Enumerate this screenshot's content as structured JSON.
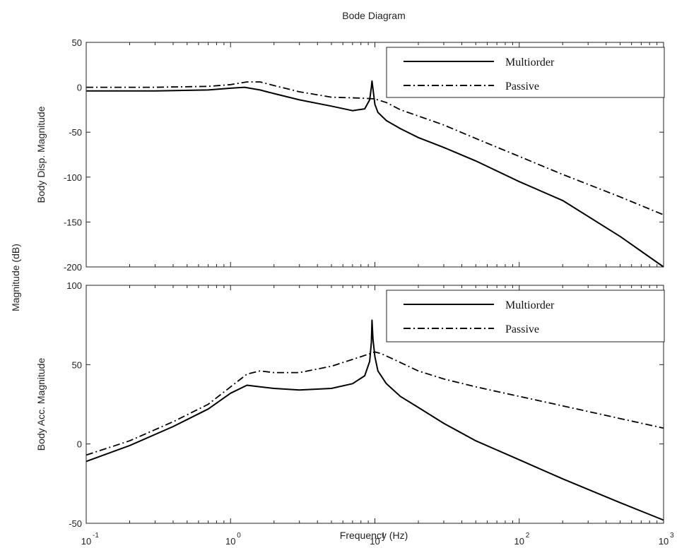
{
  "figure": {
    "title": "Bode Diagram",
    "shared_ylabel": "Magnitude (dB)",
    "xlabel": "Frequency  (Hz)"
  },
  "chart_data": [
    {
      "type": "line",
      "title": "",
      "xlabel": "Frequency  (Hz)",
      "ylabel": "Body Disp. Magnitude",
      "xscale": "log",
      "xlim": [
        0.1,
        1000
      ],
      "ylim": [
        -200,
        50
      ],
      "yticks": [
        -200,
        -150,
        -100,
        -50,
        0,
        50
      ],
      "xticks": [
        {
          "base": "10",
          "exp": "-1"
        },
        {
          "base": "10",
          "exp": "0"
        },
        {
          "base": "10",
          "exp": "1"
        },
        {
          "base": "10",
          "exp": "2"
        },
        {
          "base": "10",
          "exp": "3"
        }
      ],
      "grid": false,
      "legend_position": "top-right",
      "series": [
        {
          "name": "Multiorder",
          "style": "solid",
          "x": [
            0.1,
            0.3,
            0.7,
            1.0,
            1.25,
            1.6,
            2.0,
            3.0,
            5.0,
            7.0,
            8.5,
            9.2,
            9.45,
            9.55,
            9.7,
            10.0,
            10.5,
            12.0,
            15.0,
            20.0,
            30.0,
            50.0,
            100.0,
            200.0,
            500.0,
            1000.0
          ],
          "y": [
            -4,
            -4,
            -3,
            -1,
            0,
            -3,
            -7,
            -14,
            -21,
            -26,
            -24,
            -14,
            0,
            7,
            -2,
            -19,
            -28,
            -37,
            -46,
            -56,
            -67,
            -82,
            -105,
            -126,
            -166,
            -200
          ]
        },
        {
          "name": "Passive",
          "style": "dashdot",
          "x": [
            0.1,
            0.3,
            0.7,
            1.0,
            1.3,
            1.6,
            2.0,
            3.0,
            5.0,
            8.0,
            10.0,
            12.0,
            15.0,
            20.0,
            30.0,
            50.0,
            100.0,
            200.0,
            500.0,
            1000.0
          ],
          "y": [
            0,
            0,
            1,
            3,
            6,
            6,
            2,
            -5,
            -11,
            -12,
            -13,
            -17,
            -25,
            -32,
            -42,
            -57,
            -77,
            -97,
            -122,
            -142
          ]
        }
      ]
    },
    {
      "type": "line",
      "title": "",
      "xlabel": "Frequency  (Hz)",
      "ylabel": "Body Acc. Magnitude",
      "xscale": "log",
      "xlim": [
        0.1,
        1000
      ],
      "ylim": [
        -50,
        100
      ],
      "yticks": [
        -50,
        0,
        50,
        100
      ],
      "xticks": [
        {
          "base": "10",
          "exp": "-1"
        },
        {
          "base": "10",
          "exp": "0"
        },
        {
          "base": "10",
          "exp": "1"
        },
        {
          "base": "10",
          "exp": "2"
        },
        {
          "base": "10",
          "exp": "3"
        }
      ],
      "grid": false,
      "legend_position": "top-right",
      "series": [
        {
          "name": "Multiorder",
          "style": "solid",
          "x": [
            0.1,
            0.2,
            0.4,
            0.7,
            1.0,
            1.3,
            1.6,
            2.0,
            3.0,
            5.0,
            7.0,
            8.5,
            9.2,
            9.45,
            9.55,
            9.7,
            10.0,
            10.5,
            12.0,
            15.0,
            20.0,
            30.0,
            50.0,
            100.0,
            200.0,
            500.0,
            1000.0
          ],
          "y": [
            -11,
            -1,
            11,
            22,
            32,
            37,
            36,
            35,
            34,
            35,
            38,
            43,
            52,
            64,
            78,
            66,
            55,
            46,
            38,
            30,
            23,
            13,
            2,
            -10,
            -22,
            -37,
            -48
          ]
        },
        {
          "name": "Passive",
          "style": "dashdot",
          "x": [
            0.1,
            0.2,
            0.4,
            0.7,
            1.0,
            1.3,
            1.6,
            2.0,
            3.0,
            5.0,
            8.0,
            10.0,
            11.0,
            13.0,
            20.0,
            30.0,
            50.0,
            100.0,
            200.0,
            500.0,
            1000.0
          ],
          "y": [
            -7,
            2,
            14,
            25,
            36,
            44,
            46,
            45,
            45,
            49,
            55,
            58,
            57,
            54,
            46,
            41,
            36,
            30,
            24,
            16,
            10
          ]
        }
      ]
    }
  ]
}
